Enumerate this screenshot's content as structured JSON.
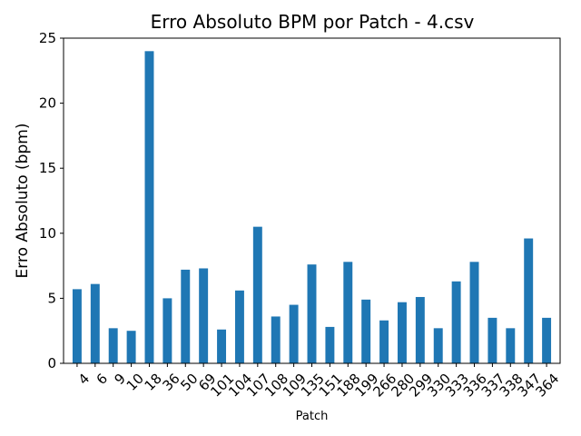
{
  "chart_data": {
    "type": "bar",
    "title": "Erro Absoluto BPM por Patch - 4.csv",
    "xlabel": "Patch",
    "ylabel": "Erro Absoluto (bpm)",
    "ylim": [
      0,
      25
    ],
    "yticks": [
      0,
      5,
      10,
      15,
      20,
      25
    ],
    "grid": false,
    "bar_color": "#1f77b4",
    "categories": [
      "4",
      "6",
      "9",
      "10",
      "18",
      "36",
      "50",
      "69",
      "101",
      "104",
      "107",
      "108",
      "109",
      "135",
      "151",
      "188",
      "199",
      "266",
      "280",
      "299",
      "330",
      "333",
      "336",
      "337",
      "338",
      "347",
      "364"
    ],
    "values": [
      5.7,
      6.1,
      2.7,
      2.5,
      24.0,
      5.0,
      7.2,
      7.3,
      2.6,
      5.6,
      10.5,
      3.6,
      4.5,
      7.6,
      2.8,
      7.8,
      4.9,
      3.3,
      4.7,
      5.1,
      2.7,
      6.3,
      7.8,
      3.5,
      2.7,
      9.6,
      3.5
    ]
  }
}
